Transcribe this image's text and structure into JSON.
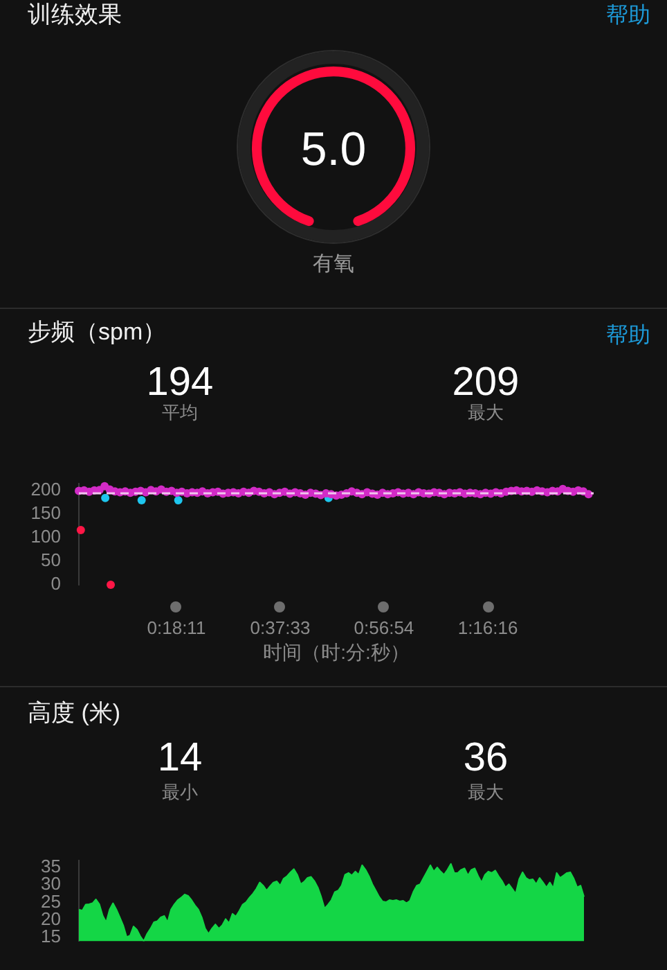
{
  "chart_data": [
    {
      "type": "pie",
      "title": "训练效果",
      "categories": [
        null
      ],
      "values": [
        5.0
      ],
      "colors": [
        "#ff0b3d"
      ],
      "value_labels": [
        "5.0"
      ],
      "annotations": [
        "帮助",
        "有氧"
      ]
    },
    {
      "type": "scatter",
      "title": "步频（spm）",
      "xlabel": "时间（时:分:秒）",
      "annotations": [
        "帮助",
        "194",
        "平均",
        "209",
        "最大"
      ],
      "marker": "circle",
      "xlim": [
        0,
        1.6
      ],
      "xticks": [
        {
          "value": 0.3031,
          "label": "0:18:11"
        },
        {
          "value": 0.6258,
          "label": "0:37:33"
        },
        {
          "value": 0.9483,
          "label": "0:56:54"
        },
        {
          "value": 1.2711,
          "label": "1:16:16"
        }
      ],
      "ylim": [
        0,
        215
      ],
      "yticks": [
        0,
        50,
        100,
        150,
        200
      ],
      "ref_lines": [
        {
          "axis": "y",
          "value": 194,
          "color": "#f0c4ee",
          "line_style": "dashed"
        }
      ],
      "series": [
        {
          "color": "#d22bc6",
          "x": [
            0,
            0.016,
            0.032,
            0.048,
            0.064,
            0.08,
            0.096,
            0.112,
            0.128,
            0.144,
            0.16,
            0.176,
            0.192,
            0.208,
            0.224,
            0.24,
            0.256,
            0.272,
            0.288,
            0.304,
            0.32,
            0.336,
            0.352,
            0.368,
            0.384,
            0.4,
            0.416,
            0.432,
            0.448,
            0.464,
            0.48,
            0.496,
            0.512,
            0.528,
            0.544,
            0.56,
            0.576,
            0.592,
            0.608,
            0.624,
            0.64,
            0.656,
            0.672,
            0.688,
            0.704,
            0.72,
            0.736,
            0.752,
            0.768,
            0.784,
            0.8,
            0.816,
            0.832,
            0.848,
            0.864,
            0.88,
            0.896,
            0.912,
            0.928,
            0.944,
            0.96,
            0.976,
            0.992,
            1.008,
            1.024,
            1.04,
            1.056,
            1.072,
            1.088,
            1.104,
            1.12,
            1.136,
            1.152,
            1.168,
            1.184,
            1.2,
            1.216,
            1.232,
            1.248,
            1.264,
            1.28,
            1.296,
            1.312,
            1.328,
            1.344,
            1.36,
            1.376,
            1.392,
            1.408,
            1.424,
            1.44,
            1.456,
            1.472,
            1.488,
            1.504,
            1.52,
            1.536,
            1.552,
            1.568,
            1.584
          ],
          "values": [
            199,
            200,
            197,
            200,
            201,
            209,
            202,
            198,
            196,
            198,
            195,
            197,
            199,
            196,
            201,
            198,
            202,
            197,
            199,
            195,
            197,
            194,
            196,
            195,
            198,
            194,
            196,
            197,
            193,
            195,
            196,
            194,
            197,
            195,
            199,
            197,
            194,
            196,
            192,
            195,
            197,
            193,
            196,
            194,
            191,
            195,
            193,
            190,
            194,
            192,
            189,
            191,
            194,
            198,
            195,
            192,
            196,
            193,
            191,
            195,
            192,
            194,
            196,
            193,
            195,
            192,
            196,
            194,
            193,
            196,
            195,
            192,
            195,
            194,
            196,
            193,
            195,
            194,
            192,
            195,
            193,
            196,
            194,
            197,
            199,
            200,
            198,
            199,
            197,
            200,
            198,
            196,
            199,
            198,
            203,
            199,
            197,
            200,
            198,
            192
          ]
        },
        {
          "color": "#1ec6ee",
          "x": [
            0.082,
            0.195,
            0.309,
            0.776
          ],
          "values": [
            184,
            179,
            179,
            184
          ]
        },
        {
          "color": "#ff1646",
          "x": [
            0.006,
            0.099
          ],
          "values": [
            116,
            0
          ]
        }
      ]
    },
    {
      "type": "area",
      "title": "高度 (米)",
      "annotations": [
        "14",
        "最小",
        "36",
        "最大"
      ],
      "marker": "none",
      "tick_labels": "y",
      "color": "#14d646",
      "ylim": [
        14,
        37
      ],
      "yticks": [
        15,
        20,
        25,
        30,
        35
      ],
      "categories": [
        null,
        null,
        null,
        null,
        null,
        null,
        null,
        null,
        null,
        null,
        null,
        null,
        null,
        null,
        null,
        null,
        null,
        null,
        null,
        null,
        null,
        null,
        null,
        null,
        null,
        null,
        null,
        null,
        null,
        null,
        null,
        null,
        null,
        null,
        null,
        null,
        null,
        null,
        null,
        null,
        null,
        null,
        null,
        null,
        null,
        null,
        null,
        null,
        null,
        null,
        null,
        null,
        null,
        null,
        null,
        null,
        null,
        null,
        null,
        null,
        null,
        null,
        null,
        null,
        null,
        null,
        null,
        null,
        null,
        null,
        null,
        null,
        null,
        null,
        null,
        null,
        null,
        null,
        null,
        null,
        null,
        null,
        null,
        null,
        null,
        null,
        null,
        null,
        null,
        null,
        null,
        null,
        null,
        null,
        null,
        null,
        null,
        null,
        null,
        null,
        null,
        null,
        null,
        null,
        null,
        null,
        null,
        null,
        null,
        null,
        null,
        null,
        null,
        null,
        null,
        null,
        null,
        null,
        null,
        null,
        null,
        null,
        null,
        null,
        null,
        null,
        null,
        null,
        null,
        null,
        null,
        null,
        null,
        null,
        null,
        null,
        null,
        null,
        null,
        null,
        null,
        null,
        null,
        null,
        null,
        null,
        null,
        null,
        null
      ],
      "values": [
        23.0,
        22.7,
        24.4,
        24.5,
        24.8,
        25.9,
        24.5,
        21.2,
        19.4,
        23.0,
        24.8,
        23.0,
        20.8,
        18.5,
        15.2,
        15.6,
        18.2,
        17.3,
        15.4,
        14.0,
        16.1,
        17.6,
        19.4,
        19.7,
        20.8,
        21.2,
        19.4,
        23.0,
        24.5,
        25.7,
        26.4,
        27.3,
        26.9,
        25.7,
        24.2,
        23.0,
        20.8,
        17.6,
        16.1,
        17.6,
        18.8,
        17.6,
        18.5,
        20.3,
        19.1,
        21.8,
        21.0,
        22.6,
        24.4,
        25.1,
        26.4,
        27.5,
        28.9,
        30.7,
        29.8,
        28.4,
        29.6,
        30.7,
        31.0,
        29.8,
        31.8,
        32.5,
        33.6,
        34.5,
        32.9,
        30.2,
        30.9,
        32.0,
        32.3,
        31.1,
        29.3,
        26.6,
        23.3,
        24.4,
        25.7,
        28.0,
        28.4,
        29.8,
        32.9,
        33.4,
        32.7,
        33.8,
        32.9,
        35.6,
        34.3,
        32.5,
        30.2,
        28.4,
        26.6,
        25.3,
        25.1,
        25.7,
        25.5,
        25.7,
        25.3,
        25.5,
        24.8,
        25.5,
        28.0,
        29.8,
        30.2,
        32.0,
        33.8,
        35.6,
        33.8,
        35.0,
        33.8,
        32.9,
        34.3,
        36.0,
        33.4,
        33.4,
        34.3,
        34.7,
        32.7,
        34.3,
        34.7,
        32.5,
        30.7,
        32.9,
        33.8,
        33.4,
        34.1,
        32.5,
        31.1,
        29.3,
        30.2,
        28.9,
        27.5,
        31.6,
        33.6,
        32.0,
        31.4,
        31.6,
        30.2,
        32.0,
        30.7,
        29.3,
        30.7,
        29.1,
        33.4,
        32.0,
        32.7,
        33.4,
        33.6,
        31.8,
        29.3,
        29.8,
        26.6
      ]
    }
  ]
}
